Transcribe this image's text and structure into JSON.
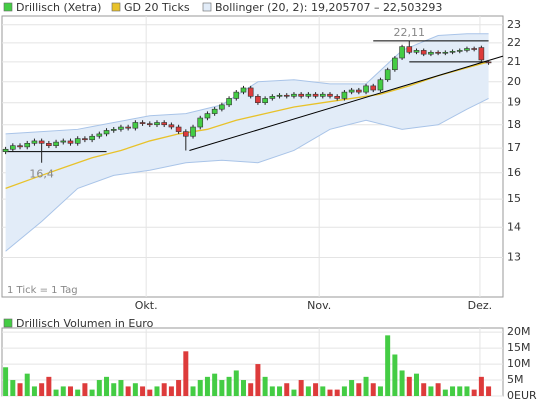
{
  "chart_data": {
    "type": "candlestick",
    "candles": {
      "name": "Drillisch (Xetra)",
      "up_color": "#44cc44",
      "down_color": "#dd3b3b",
      "x": [
        0,
        1,
        2,
        3,
        4,
        5,
        6,
        7,
        8,
        9,
        10,
        11,
        12,
        13,
        14,
        15,
        16,
        17,
        18,
        19,
        20,
        21,
        22,
        23,
        24,
        25,
        26,
        27,
        28,
        29,
        30,
        31,
        32,
        33,
        34,
        35,
        36,
        37,
        38,
        39,
        40,
        41,
        42,
        43,
        44,
        45,
        46,
        47,
        48,
        49,
        50,
        51,
        52,
        53,
        54,
        55,
        56,
        57,
        58,
        59,
        60,
        61,
        62,
        63,
        64,
        65,
        66,
        67
      ],
      "open": [
        16.85,
        16.95,
        17.1,
        17.05,
        17.2,
        17.3,
        17.2,
        17.1,
        17.25,
        17.3,
        17.2,
        17.4,
        17.35,
        17.5,
        17.6,
        17.75,
        17.8,
        17.9,
        17.85,
        18.1,
        18.05,
        18.0,
        18.1,
        18.0,
        17.9,
        17.7,
        17.5,
        17.9,
        18.3,
        18.5,
        18.7,
        18.9,
        19.2,
        19.5,
        19.7,
        19.3,
        19.0,
        19.2,
        19.3,
        19.35,
        19.3,
        19.4,
        19.3,
        19.4,
        19.3,
        19.4,
        19.3,
        19.2,
        19.5,
        19.6,
        19.5,
        19.8,
        19.6,
        20.1,
        20.6,
        21.2,
        21.8,
        21.5,
        21.6,
        21.4,
        21.5,
        21.45,
        21.5,
        21.55,
        21.6,
        21.7,
        21.75,
        21.0
      ],
      "high": [
        17.05,
        17.2,
        17.2,
        17.3,
        17.4,
        17.4,
        17.3,
        17.35,
        17.4,
        17.4,
        17.5,
        17.5,
        17.6,
        17.7,
        17.85,
        17.9,
        18.0,
        18.0,
        18.2,
        18.2,
        18.15,
        18.2,
        18.2,
        18.1,
        18.0,
        17.8,
        18.0,
        18.4,
        18.6,
        18.8,
        19.0,
        19.3,
        19.6,
        19.8,
        19.8,
        19.4,
        19.3,
        19.4,
        19.45,
        19.45,
        19.5,
        19.5,
        19.5,
        19.5,
        19.5,
        19.5,
        19.4,
        19.6,
        19.7,
        19.7,
        19.9,
        19.9,
        20.2,
        20.7,
        21.3,
        21.9,
        22.11,
        21.7,
        21.7,
        21.6,
        21.6,
        21.6,
        21.65,
        21.7,
        21.8,
        21.8,
        21.85,
        21.1
      ],
      "low": [
        16.75,
        16.85,
        16.95,
        16.95,
        17.1,
        16.4,
        17.0,
        17.0,
        17.15,
        17.1,
        17.1,
        17.25,
        17.25,
        17.4,
        17.5,
        17.65,
        17.7,
        17.75,
        17.75,
        17.95,
        17.9,
        17.9,
        17.9,
        17.8,
        17.6,
        16.9,
        17.4,
        17.8,
        18.2,
        18.4,
        18.6,
        18.8,
        19.1,
        19.4,
        19.2,
        18.9,
        18.9,
        19.1,
        19.2,
        19.2,
        19.2,
        19.2,
        19.2,
        19.2,
        19.2,
        19.2,
        19.1,
        19.1,
        19.4,
        19.4,
        19.4,
        19.5,
        19.5,
        20.0,
        20.5,
        21.1,
        21.4,
        21.4,
        21.3,
        21.3,
        21.35,
        21.35,
        21.4,
        21.45,
        21.5,
        21.55,
        21.0,
        20.85
      ],
      "close": [
        16.95,
        17.1,
        17.05,
        17.2,
        17.3,
        17.2,
        17.1,
        17.25,
        17.3,
        17.2,
        17.4,
        17.35,
        17.5,
        17.6,
        17.75,
        17.8,
        17.9,
        17.85,
        18.1,
        18.05,
        18.0,
        18.1,
        18.0,
        17.9,
        17.7,
        17.5,
        17.9,
        18.3,
        18.5,
        18.7,
        18.9,
        19.2,
        19.5,
        19.7,
        19.3,
        19.0,
        19.2,
        19.3,
        19.35,
        19.3,
        19.4,
        19.3,
        19.4,
        19.3,
        19.4,
        19.3,
        19.2,
        19.5,
        19.6,
        19.5,
        19.8,
        19.6,
        20.1,
        20.6,
        21.2,
        21.8,
        21.5,
        21.6,
        21.4,
        21.5,
        21.45,
        21.5,
        21.55,
        21.6,
        21.7,
        21.65,
        21.1,
        20.95
      ]
    },
    "moving_average": {
      "name": "GD 20 Ticks",
      "color": "#e8c22a",
      "x": [
        0,
        4,
        8,
        12,
        16,
        20,
        24,
        28,
        32,
        36,
        40,
        44,
        48,
        52,
        56,
        60,
        64,
        67
      ],
      "values": [
        15.4,
        15.8,
        16.2,
        16.6,
        16.9,
        17.3,
        17.6,
        17.8,
        18.2,
        18.5,
        18.8,
        19.0,
        19.2,
        19.4,
        19.8,
        20.3,
        20.7,
        21.0
      ]
    },
    "bollinger": {
      "name": "Bollinger (20, 2): 19,205707 – 22,503293",
      "color": "#a9c4e8",
      "fill": "#e2ecf8",
      "x": [
        0,
        5,
        10,
        15,
        20,
        25,
        30,
        35,
        40,
        45,
        50,
        55,
        60,
        64,
        67
      ],
      "upper": [
        17.6,
        17.7,
        17.8,
        18.1,
        18.4,
        18.5,
        18.9,
        20.0,
        20.1,
        19.9,
        19.9,
        21.6,
        22.4,
        22.5,
        22.5
      ],
      "lower": [
        13.2,
        14.2,
        15.4,
        15.9,
        16.1,
        16.4,
        16.5,
        16.4,
        16.9,
        17.8,
        18.2,
        17.8,
        18.0,
        18.7,
        19.2
      ]
    },
    "trend_lines": [
      {
        "x": [
          0,
          14
        ],
        "y": [
          16.85,
          16.85
        ]
      },
      {
        "x": [
          25.5,
          69
        ],
        "y": [
          16.9,
          21.3
        ]
      },
      {
        "x": [
          51,
          67
        ],
        "y": [
          22.11,
          22.11
        ]
      },
      {
        "x": [
          56,
          67
        ],
        "y": [
          21.0,
          21.0
        ]
      }
    ],
    "trend_color": "#000000",
    "annotations": [
      "16,4",
      "22,11"
    ],
    "note": "1 Tick = 1 Tag",
    "xlim": [
      -0.5,
      69
    ],
    "xticks": [
      {
        "value": 19.5,
        "label": "Okt."
      },
      {
        "value": 43.5,
        "label": "Nov."
      },
      {
        "value": 65.8,
        "label": "Dez."
      }
    ],
    "ylim": [
      11.8,
      23.5
    ],
    "ylog": true,
    "yticks": [
      13,
      14,
      15,
      16,
      17,
      18,
      19,
      20,
      21,
      22,
      23
    ],
    "grid": true,
    "volume": {
      "title": "Drillisch Volumen in Euro",
      "color": "#44cc44",
      "values": [
        9000000,
        5000000,
        4000000,
        7000000,
        3000000,
        4000000,
        6000000,
        2000000,
        3000000,
        3000000,
        2000000,
        4000000,
        2000000,
        5000000,
        6000000,
        4000000,
        5000000,
        3000000,
        4000000,
        3000000,
        2000000,
        3000000,
        4000000,
        3000000,
        5000000,
        14000000,
        3000000,
        5000000,
        6000000,
        7000000,
        5000000,
        6000000,
        8000000,
        5000000,
        4000000,
        10000000,
        6000000,
        3000000,
        3000000,
        4000000,
        2000000,
        5000000,
        3000000,
        4000000,
        3000000,
        2000000,
        2000000,
        3000000,
        5000000,
        4000000,
        6000000,
        4000000,
        3000000,
        19000000,
        13000000,
        8000000,
        6000000,
        7000000,
        4000000,
        3000000,
        4000000,
        2000000,
        3000000,
        3000000,
        3000000,
        2000000,
        6000000,
        3000000
      ],
      "ylim": [
        0,
        21300000
      ],
      "yticks": [
        {
          "value": 0,
          "label": "0EUR"
        },
        {
          "value": 5000000,
          "label": "5M"
        },
        {
          "value": 10000000,
          "label": "10M"
        },
        {
          "value": 15000000,
          "label": "15M"
        },
        {
          "value": 20000000,
          "label": "20M"
        }
      ]
    }
  }
}
